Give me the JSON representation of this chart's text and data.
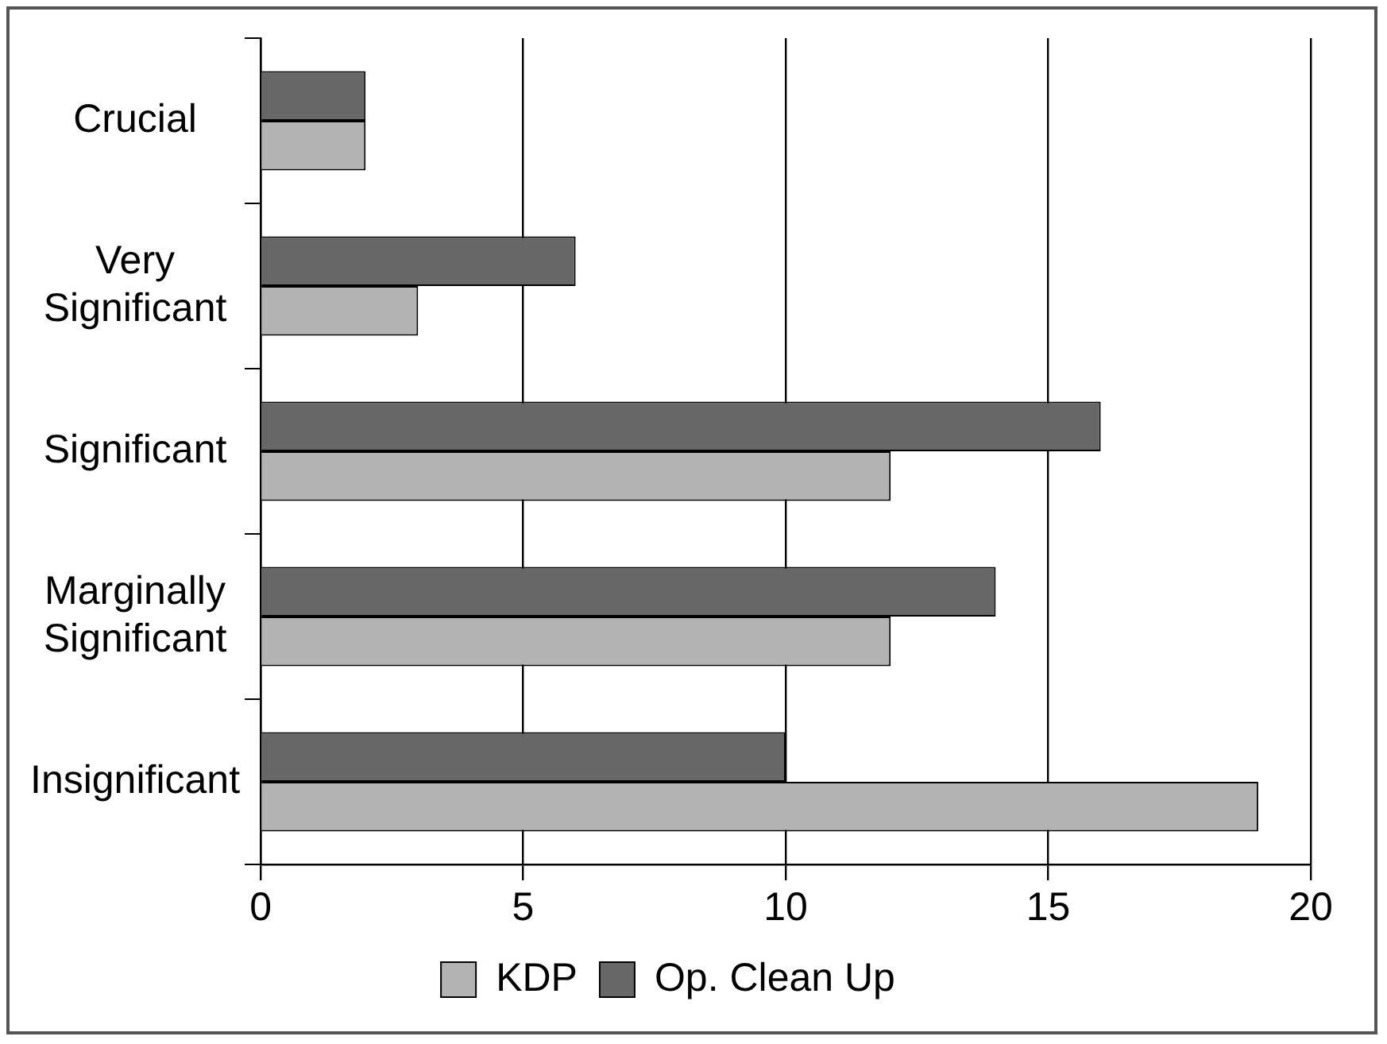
{
  "chart_data": {
    "type": "bar",
    "orientation": "horizontal",
    "categories": [
      "Crucial",
      "Very Significant",
      "Significant",
      "Marginally Significant",
      "Insignificant"
    ],
    "series": [
      {
        "name": "KDP",
        "color": "#b3b3b3",
        "values": [
          2,
          3,
          12,
          12,
          19
        ]
      },
      {
        "name": "Op. Clean Up",
        "color": "#676767",
        "values": [
          2,
          6,
          16,
          14,
          10
        ]
      }
    ],
    "xlim": [
      0,
      20
    ],
    "xticks": [
      0,
      5,
      10,
      15,
      20
    ],
    "grid": "x",
    "legend": "bottom"
  }
}
